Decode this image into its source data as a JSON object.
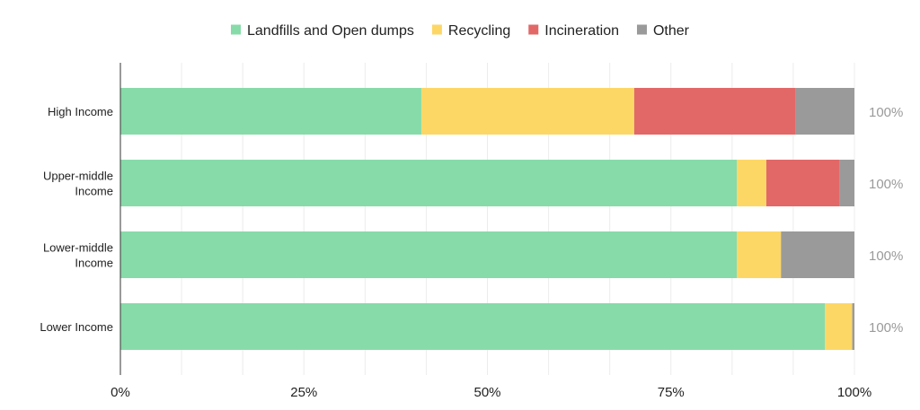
{
  "chart_data": {
    "type": "bar",
    "orientation": "horizontal",
    "stacked": "percent",
    "categories": [
      [
        "High Income"
      ],
      [
        "Upper-middle",
        "Income"
      ],
      [
        "Lower-middle",
        "Income"
      ],
      [
        "Lower Income"
      ]
    ],
    "series": [
      {
        "name": "Landfills and Open dumps",
        "color": "#87dba9",
        "values": [
          41,
          84,
          84,
          96
        ]
      },
      {
        "name": "Recycling",
        "color": "#fdd766",
        "values": [
          29,
          4,
          6,
          3.7
        ]
      },
      {
        "name": "Incineration",
        "color": "#e26868",
        "values": [
          22,
          10,
          0,
          0
        ]
      },
      {
        "name": "Other",
        "color": "#9a9a9a",
        "values": [
          8,
          2,
          10,
          0.3
        ]
      }
    ],
    "totals": [
      "100%",
      "100%",
      "100%",
      "100%"
    ],
    "x_ticks": [
      "0%",
      "25%",
      "50%",
      "75%",
      "100%"
    ],
    "xlim": [
      0,
      100
    ],
    "grid": true,
    "legend_position": "top"
  }
}
